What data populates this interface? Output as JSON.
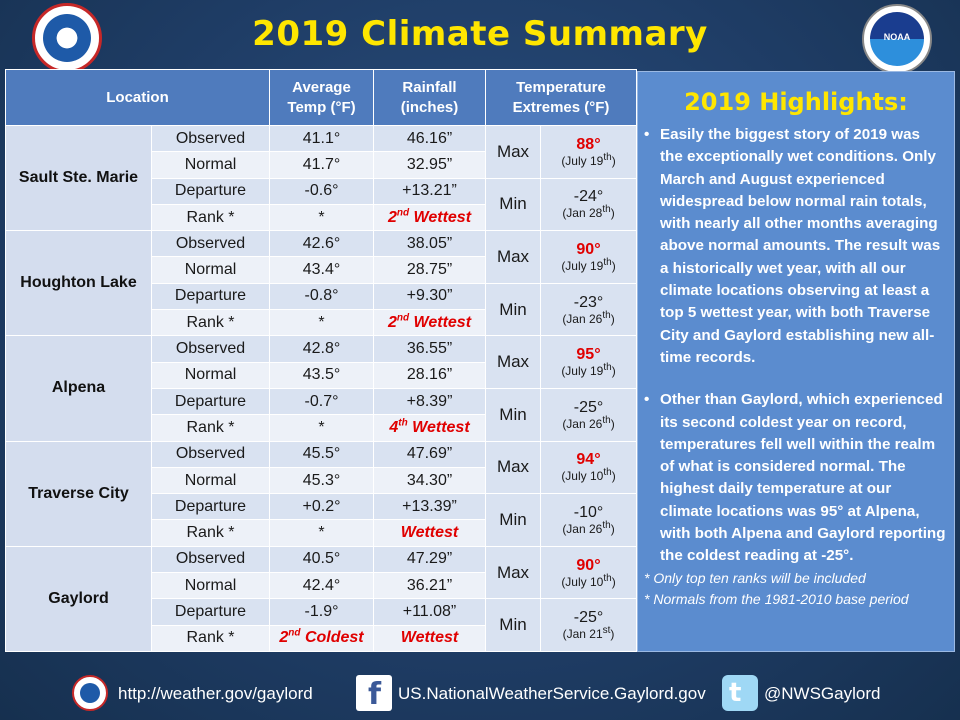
{
  "title": "2019 Climate Summary",
  "table": {
    "headers": {
      "location": "Location",
      "avg_temp": [
        "Average",
        "Temp (°F)"
      ],
      "rainfall": [
        "Rainfall",
        "(inches)"
      ],
      "temp_ext": [
        "Temperature",
        "Extremes (°F)"
      ]
    },
    "row_labels": [
      "Observed",
      "Normal",
      "Departure",
      "Rank *"
    ],
    "max_label": "Max",
    "min_label": "Min",
    "stations": [
      {
        "name": "Sault Ste. Marie",
        "temp": [
          "41.1°",
          "41.7°",
          "-0.6°",
          "*"
        ],
        "rain": [
          "46.16”",
          "32.95”",
          "+13.21”"
        ],
        "temp_rank": {
          "pre": "",
          "sup": "",
          "post": ""
        },
        "rain_rank": {
          "pre": "2",
          "sup": "nd",
          "post": " Wettest"
        },
        "max": {
          "value": "88°",
          "date_pre": "(July 19",
          "date_sup": "th",
          "date_post": ")"
        },
        "min": {
          "value": "-24°",
          "date_pre": "(Jan 28",
          "date_sup": "th",
          "date_post": ")"
        }
      },
      {
        "name": "Houghton Lake",
        "temp": [
          "42.6°",
          "43.4°",
          "-0.8°",
          "*"
        ],
        "rain": [
          "38.05”",
          "28.75”",
          "+9.30”"
        ],
        "temp_rank": {
          "pre": "",
          "sup": "",
          "post": ""
        },
        "rain_rank": {
          "pre": "2",
          "sup": "nd",
          "post": " Wettest"
        },
        "max": {
          "value": "90°",
          "date_pre": "(July 19",
          "date_sup": "th",
          "date_post": ")"
        },
        "min": {
          "value": "-23°",
          "date_pre": "(Jan 26",
          "date_sup": "th",
          "date_post": ")"
        }
      },
      {
        "name": "Alpena",
        "temp": [
          "42.8°",
          "43.5°",
          "-0.7°",
          "*"
        ],
        "rain": [
          "36.55”",
          "28.16”",
          "+8.39”"
        ],
        "temp_rank": {
          "pre": "",
          "sup": "",
          "post": ""
        },
        "rain_rank": {
          "pre": "4",
          "sup": "th",
          "post": " Wettest"
        },
        "max": {
          "value": "95°",
          "date_pre": "(July 19",
          "date_sup": "th",
          "date_post": ")"
        },
        "min": {
          "value": "-25°",
          "date_pre": "(Jan 26",
          "date_sup": "th",
          "date_post": ")"
        }
      },
      {
        "name": "Traverse City",
        "temp": [
          "45.5°",
          "45.3°",
          "+0.2°",
          "*"
        ],
        "rain": [
          "47.69”",
          "34.30”",
          "+13.39”"
        ],
        "temp_rank": {
          "pre": "",
          "sup": "",
          "post": ""
        },
        "rain_rank": {
          "pre": "",
          "sup": "",
          "post": "Wettest"
        },
        "max": {
          "value": "94°",
          "date_pre": "(July 10",
          "date_sup": "th",
          "date_post": ")"
        },
        "min": {
          "value": "-10°",
          "date_pre": "(Jan 26",
          "date_sup": "th",
          "date_post": ")"
        }
      },
      {
        "name": "Gaylord",
        "temp": [
          "40.5°",
          "42.4°",
          "-1.9°",
          ""
        ],
        "rain": [
          "47.29”",
          "36.21”",
          "+11.08”"
        ],
        "temp_rank": {
          "pre": "2",
          "sup": "nd",
          "post": " Coldest"
        },
        "rain_rank": {
          "pre": "",
          "sup": "",
          "post": "Wettest"
        },
        "max": {
          "value": "90°",
          "date_pre": "(July 10",
          "date_sup": "th",
          "date_post": ")"
        },
        "min": {
          "value": "-25°",
          "date_pre": "(Jan 21",
          "date_sup": "st",
          "date_post": ")"
        }
      }
    ]
  },
  "highlights": {
    "title": "2019 Highlights:",
    "bullet_1": "Easily the biggest story of 2019 was the exceptionally wet conditions. Only March and August experienced widespread below normal rain totals, with nearly all other months averaging above normal amounts. The result was a historically wet year, with all our climate locations observing at least a top 5 wettest year, with both Traverse City and Gaylord establishing new all-time records.",
    "bullet_2": "Other than Gaylord, which experienced its second coldest year on record, temperatures fell well within the realm of what is considered normal. The highest daily temperature at our climate locations was 95° at Alpena, with both Alpena and Gaylord reporting the coldest reading at -25°.",
    "note_1": "*  Only top ten ranks will be included",
    "note_2": "*  Normals from the 1981-2010 base period"
  },
  "footer": {
    "website": "http://weather.gov/gaylord",
    "facebook": "US.NationalWeatherService.Gaylord.gov",
    "twitter": "@NWSGaylord"
  },
  "logos": {
    "left": "NWS",
    "right": "NOAA"
  },
  "colors": {
    "background": "#1f3d66",
    "title": "#ffe600",
    "header": "#4f7bbd",
    "row_dark": "#d9e2f1",
    "row_light": "#edf1f8",
    "highlight_box": "#5b8ccf",
    "record_red": "#e00000"
  }
}
